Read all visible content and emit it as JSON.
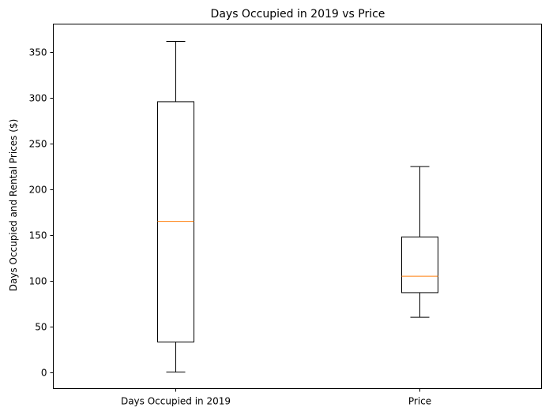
{
  "chart_data": {
    "type": "box",
    "title": "Days Occupied in 2019 vs Price",
    "xlabel": "",
    "ylabel": "Days Occupied and Rental Prices ($)",
    "categories": [
      "Days Occupied in 2019",
      "Price"
    ],
    "boxes": [
      {
        "whisker_low": 0,
        "q1": 33,
        "median": 165,
        "q3": 296,
        "whisker_high": 362
      },
      {
        "whisker_low": 60,
        "q1": 87,
        "median": 105,
        "q3": 148,
        "whisker_high": 225
      }
    ],
    "ylim": [
      -18,
      381
    ],
    "yticks": [
      0,
      50,
      100,
      150,
      200,
      250,
      300,
      350
    ],
    "grid": false,
    "colors": {
      "box": "#000000",
      "median": "#ff7f0e",
      "background": "#ffffff"
    }
  }
}
